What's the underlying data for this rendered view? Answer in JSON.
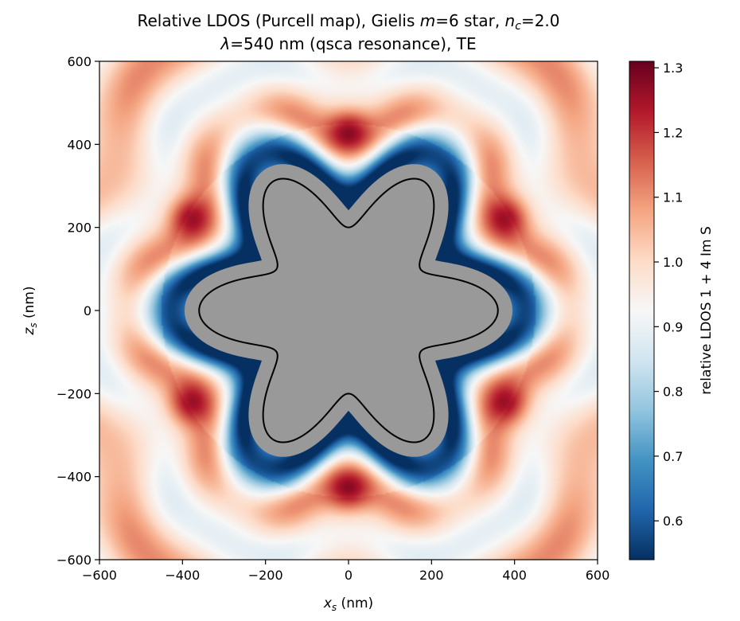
{
  "chart_data": {
    "type": "heatmap",
    "title_line1_parts": [
      "Relative LDOS (Purcell map), Gielis ",
      "m",
      "=6 star, ",
      "n",
      "c",
      "=2.0"
    ],
    "title_line2_parts": [
      "λ",
      "=540 nm (qsca resonance), TE"
    ],
    "xlabel_parts": [
      "x",
      "s",
      " (nm)"
    ],
    "ylabel_parts": [
      "z",
      "s",
      " (nm)"
    ],
    "colorbar_label": "relative LDOS  1 + 4 Im S",
    "xlim": [
      -600,
      600
    ],
    "ylim": [
      -600,
      600
    ],
    "x_ticks": [
      -600,
      -400,
      -200,
      0,
      200,
      400,
      600
    ],
    "y_ticks": [
      -600,
      -400,
      -200,
      0,
      200,
      400,
      600
    ],
    "x_tick_labels": [
      "−600",
      "−400",
      "−200",
      "0",
      "200",
      "400",
      "600"
    ],
    "y_tick_labels": [
      "−600",
      "−400",
      "−200",
      "0",
      "200",
      "400",
      "600"
    ],
    "colorbar_range": [
      0.54,
      1.31
    ],
    "colorbar_ticks": [
      0.6,
      0.7,
      0.8,
      0.9,
      1.0,
      1.1,
      1.2,
      1.3
    ],
    "colorbar_tick_labels": [
      "0.6",
      "0.7",
      "0.8",
      "0.9",
      "1.0",
      "1.1",
      "1.2",
      "1.3"
    ],
    "colormap": "RdBu_r",
    "colormap_stops": [
      "#053061",
      "#2166ac",
      "#4393c3",
      "#92c5de",
      "#d1e5f0",
      "#f7f7f7",
      "#fddbc7",
      "#f4a582",
      "#d6604d",
      "#b2182b",
      "#67001f"
    ],
    "masked_color": "#999999",
    "outline_color": "#000000",
    "star": {
      "symmetry_m": 6,
      "outer_tip_radius_nm": 360,
      "inner_valley_radius_nm": 200,
      "masked_margin_nm": 35
    },
    "field_features": [
      {
        "description": "maxima above/below star",
        "points": [
          [
            0,
            435
          ],
          [
            0,
            -435
          ]
        ],
        "value": 1.31
      },
      {
        "description": "diagonal maxima",
        "points": [
          [
            -385,
            225
          ],
          [
            385,
            225
          ],
          [
            -385,
            -225
          ],
          [
            385,
            -225
          ]
        ],
        "value": 1.31
      },
      {
        "description": "minimum ring adjacent to star",
        "radius_nm": 330,
        "value": 0.55
      }
    ]
  }
}
